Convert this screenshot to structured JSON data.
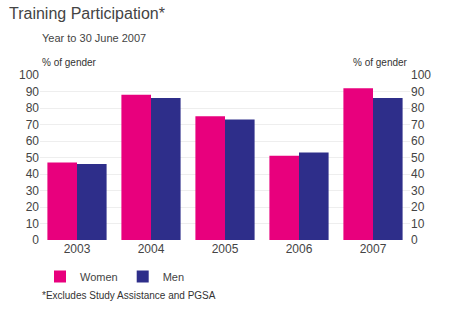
{
  "chart_data": {
    "type": "bar",
    "title": "Training Participation*",
    "subtitle": "Year to 30 June 2007",
    "footnote": "*Excludes Study Assistance and PGSA",
    "ylabel": "% of gender",
    "y2label": "% of gender",
    "categories": [
      "2003",
      "2004",
      "2005",
      "2006",
      "2007"
    ],
    "series": [
      {
        "name": "Women",
        "color": "#E8007D",
        "values": [
          47,
          88,
          75,
          51,
          92
        ]
      },
      {
        "name": "Men",
        "color": "#2E2E8A",
        "values": [
          46,
          86,
          73,
          53,
          86
        ]
      }
    ],
    "ylim": [
      0,
      100
    ],
    "yticks": [
      0,
      10,
      20,
      30,
      40,
      50,
      60,
      70,
      80,
      90,
      100
    ],
    "y2lim": [
      0,
      100
    ],
    "y2ticks": [
      0,
      10,
      20,
      30,
      40,
      50,
      60,
      70,
      80,
      90,
      100
    ],
    "grid": true,
    "legend": "bottom"
  }
}
